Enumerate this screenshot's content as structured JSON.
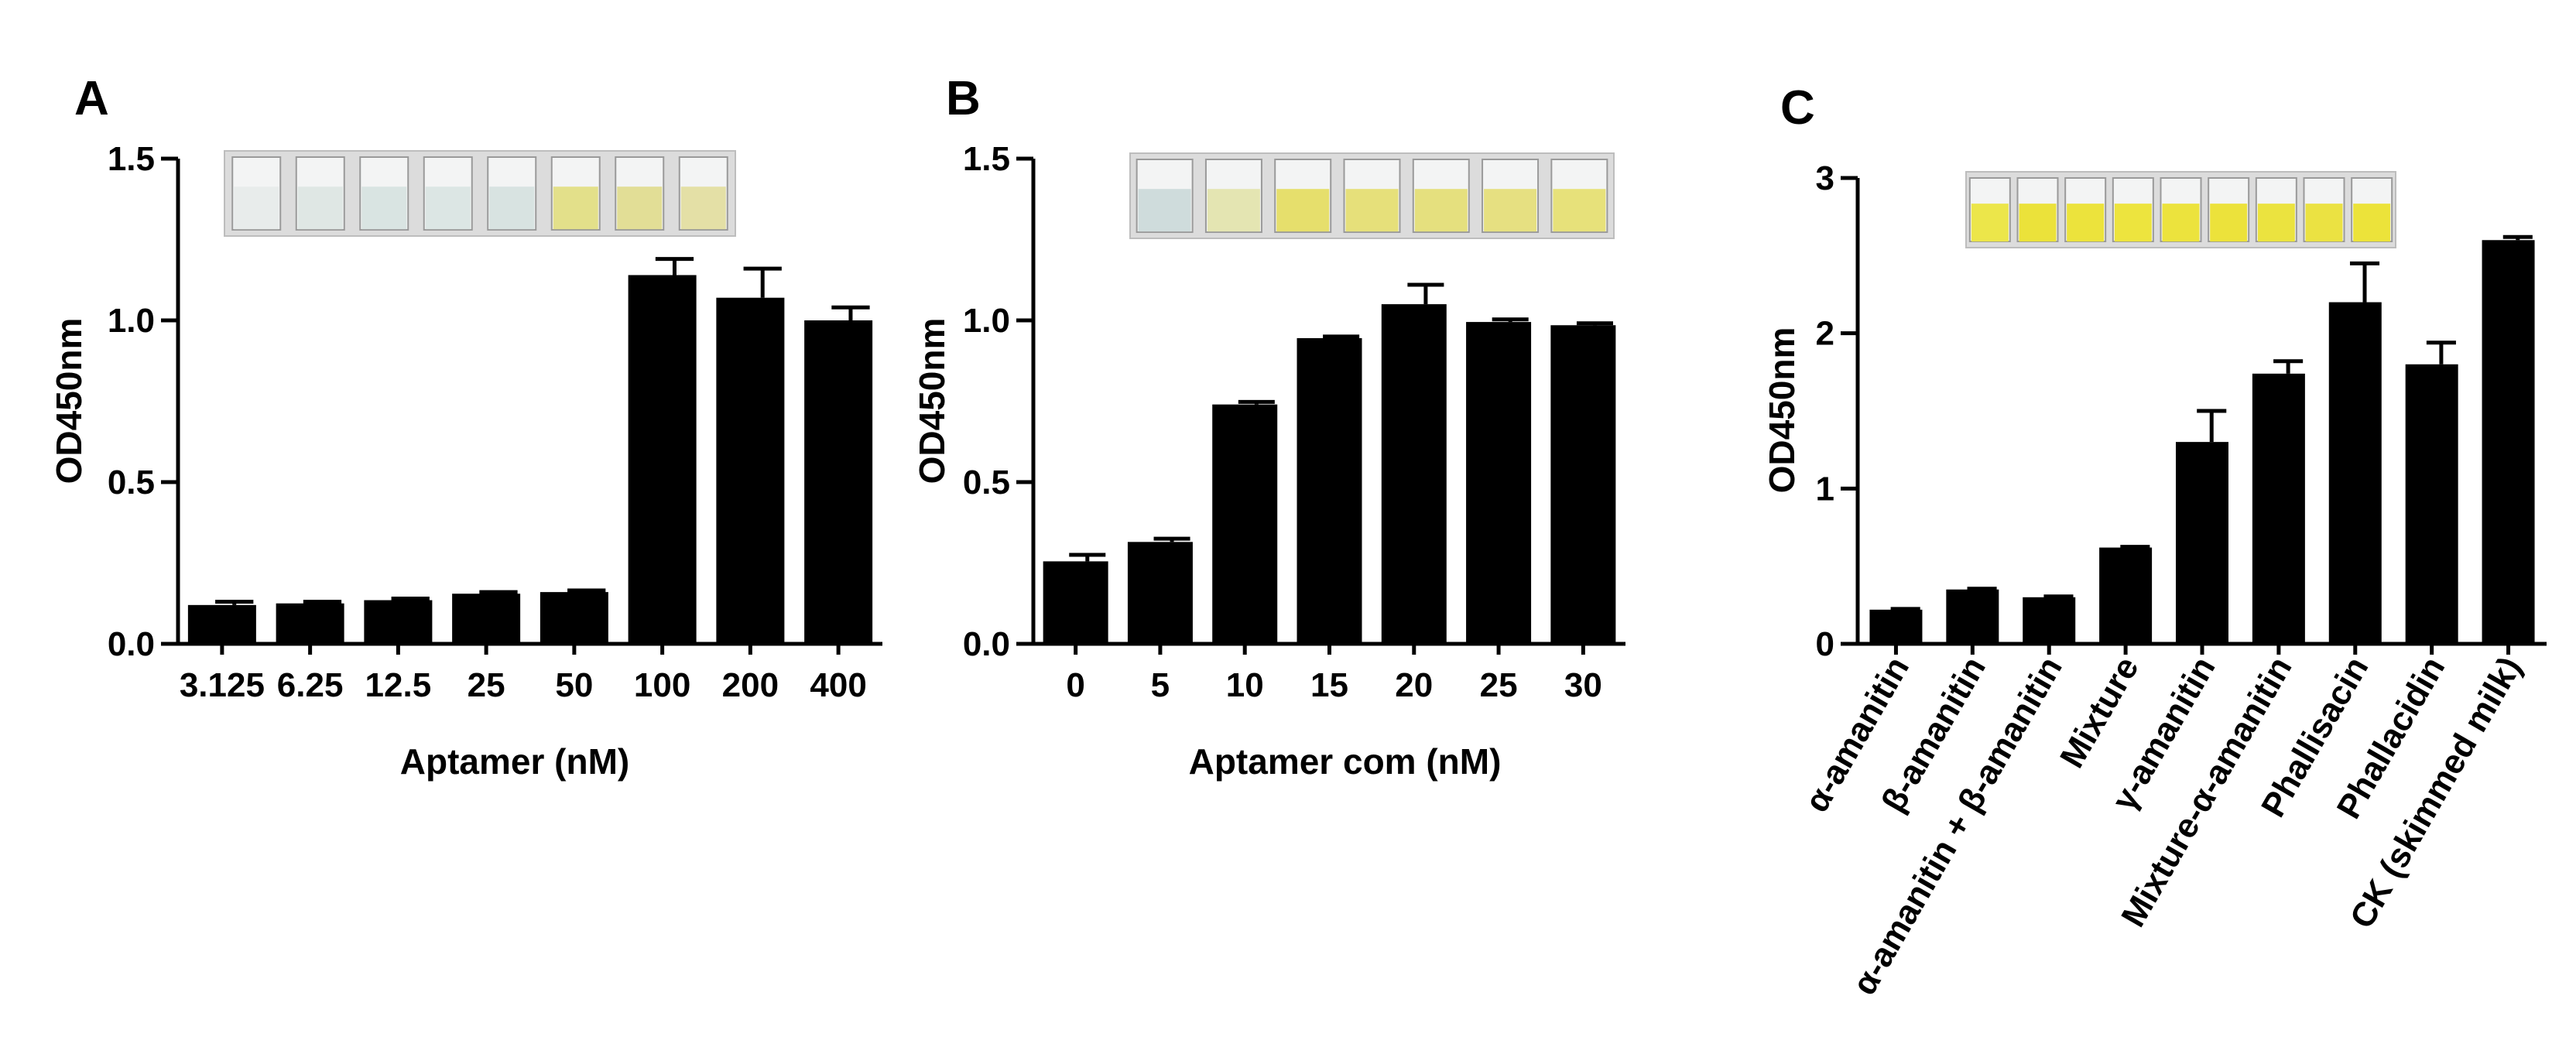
{
  "panels": [
    {
      "label": "A",
      "chart_data": {
        "type": "bar",
        "categories": [
          "3.125",
          "6.25",
          "12.5",
          "25",
          "50",
          "100",
          "200",
          "400"
        ],
        "values": [
          0.12,
          0.125,
          0.135,
          0.155,
          0.16,
          1.14,
          1.07,
          1.0
        ],
        "errors": [
          0.01,
          0.005,
          0.005,
          0.005,
          0.005,
          0.05,
          0.09,
          0.04
        ],
        "ylim": [
          0,
          1.5
        ],
        "yticks": [
          "0.0",
          "0.5",
          "1.0",
          "1.5"
        ],
        "ylabel": "OD450nm",
        "xlabel": "Aptamer (nM)",
        "wells": [
          "#e8eceb",
          "#dfe7e4",
          "#d9e4e2",
          "#dce6e4",
          "#d8e3e1",
          "#e3e08a",
          "#e2de96",
          "#e4e0a6"
        ]
      }
    },
    {
      "label": "B",
      "chart_data": {
        "type": "bar",
        "categories": [
          "0",
          "5",
          "10",
          "15",
          "20",
          "25",
          "30"
        ],
        "values": [
          0.255,
          0.315,
          0.74,
          0.945,
          1.05,
          0.995,
          0.985
        ],
        "errors": [
          0.02,
          0.01,
          0.008,
          0.005,
          0.06,
          0.008,
          0.006
        ],
        "ylim": [
          0,
          1.5
        ],
        "yticks": [
          "0.0",
          "0.5",
          "1.0",
          "1.5"
        ],
        "ylabel": "OD450nm",
        "xlabel": "Aptamer com (nM)",
        "wells": [
          "#cfdcdc",
          "#e4e5b2",
          "#e6df6c",
          "#e6e07a",
          "#e5e07e",
          "#e6e081",
          "#e7e17a"
        ]
      }
    },
    {
      "label": "C",
      "chart_data": {
        "type": "bar",
        "categories": [
          "α-amanitin",
          "β-amanitin",
          "α-amanitin + β-amanitin",
          "Mixture",
          "γ-amanitin",
          "Mixture-α-amanitin",
          "Phallisacin",
          "Phallacidin",
          "CK (skimmed milk)"
        ],
        "values": [
          0.22,
          0.35,
          0.3,
          0.62,
          1.3,
          1.74,
          2.2,
          1.8,
          2.6
        ],
        "errors": [
          0.005,
          0.005,
          0.005,
          0.005,
          0.2,
          0.08,
          0.25,
          0.14,
          0.02
        ],
        "ylim": [
          0,
          3
        ],
        "yticks": [
          "0",
          "1",
          "2",
          "3"
        ],
        "ylabel": "OD450nm",
        "xlabel": "",
        "wells": [
          "#ece64a",
          "#ebe23a",
          "#ece33c",
          "#ede43e",
          "#ece33d",
          "#ece23b",
          "#ebe33f",
          "#ebe242",
          "#ece33a"
        ]
      }
    }
  ]
}
